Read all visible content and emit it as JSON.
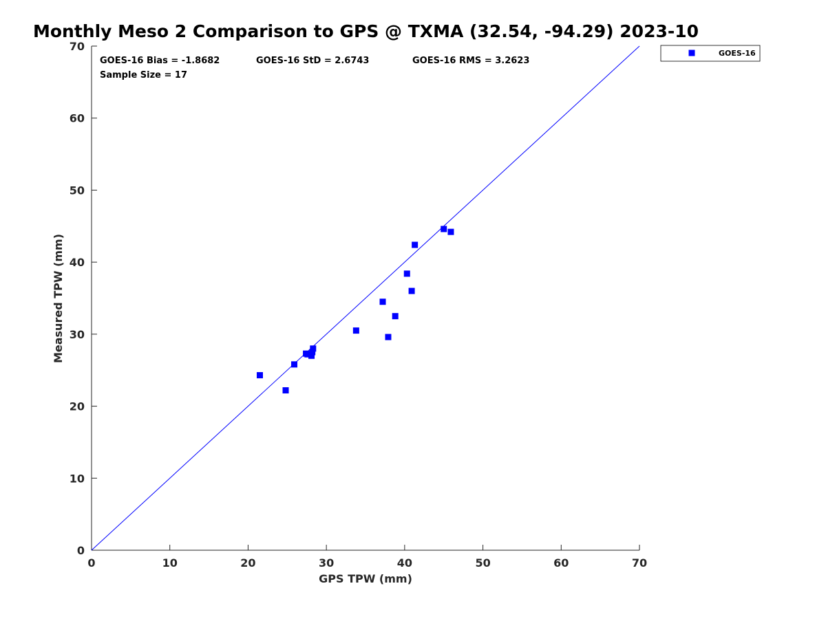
{
  "chart_data": {
    "type": "scatter",
    "title": "Monthly Meso 2 Comparison to GPS @ TXMA (32.54, -94.29) 2023-10",
    "xlabel": "GPS TPW (mm)",
    "ylabel": "Measured TPW (mm)",
    "xlim": [
      0,
      70
    ],
    "ylim": [
      0,
      70
    ],
    "xticks": [
      "0",
      "10",
      "20",
      "30",
      "40",
      "50",
      "60",
      "70"
    ],
    "yticks": [
      "0",
      "10",
      "20",
      "30",
      "40",
      "50",
      "60",
      "70"
    ],
    "grid": false,
    "legend_position": "outside-top-right",
    "stats": {
      "bias": "GOES-16 Bias = -1.8682",
      "std": "GOES-16 StD = 2.6743",
      "rms": "GOES-16 RMS = 3.2623",
      "sample_size": "Sample Size = 17"
    },
    "reference_line": {
      "x": [
        0,
        70
      ],
      "y": [
        0,
        70
      ],
      "color": "#0000ff"
    },
    "series": [
      {
        "name": "GOES-16",
        "color": "#0000ff",
        "marker": "square",
        "points": [
          [
            21.5,
            24.3
          ],
          [
            24.8,
            22.2
          ],
          [
            25.9,
            25.8
          ],
          [
            27.4,
            27.3
          ],
          [
            27.6,
            27.2
          ],
          [
            28.1,
            27.0
          ],
          [
            28.2,
            27.5
          ],
          [
            28.3,
            28.0
          ],
          [
            33.8,
            30.5
          ],
          [
            37.2,
            34.5
          ],
          [
            37.9,
            29.6
          ],
          [
            38.8,
            32.5
          ],
          [
            40.3,
            38.4
          ],
          [
            40.9,
            36.0
          ],
          [
            41.3,
            42.4
          ],
          [
            45.0,
            44.6
          ],
          [
            45.9,
            44.2
          ]
        ]
      }
    ]
  }
}
